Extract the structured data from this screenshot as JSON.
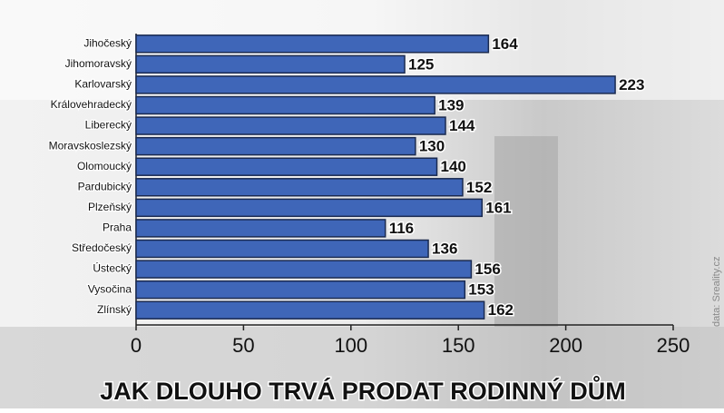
{
  "chart_data": {
    "type": "bar",
    "orientation": "horizontal",
    "title": "JAK DLOUHO TRVÁ PRODAT RODINNÝ DŮM",
    "source": "data: Sreality.cz",
    "categories": [
      "Jihočeský",
      "Jihomoravský",
      "Karlovarský",
      "Královehradecký",
      "Liberecký",
      "Moravskoslezský",
      "Olomoucký",
      "Pardubický",
      "Plzeňský",
      "Praha",
      "Středočeský",
      "Ústecký",
      "Vysočina",
      "Zlínský"
    ],
    "values": [
      164,
      125,
      223,
      139,
      144,
      130,
      140,
      152,
      161,
      116,
      136,
      156,
      153,
      162
    ],
    "color": "#3f66b8",
    "xlim": [
      0,
      250
    ],
    "xticks": [
      0,
      50,
      100,
      150,
      200,
      250
    ],
    "grid": false
  }
}
